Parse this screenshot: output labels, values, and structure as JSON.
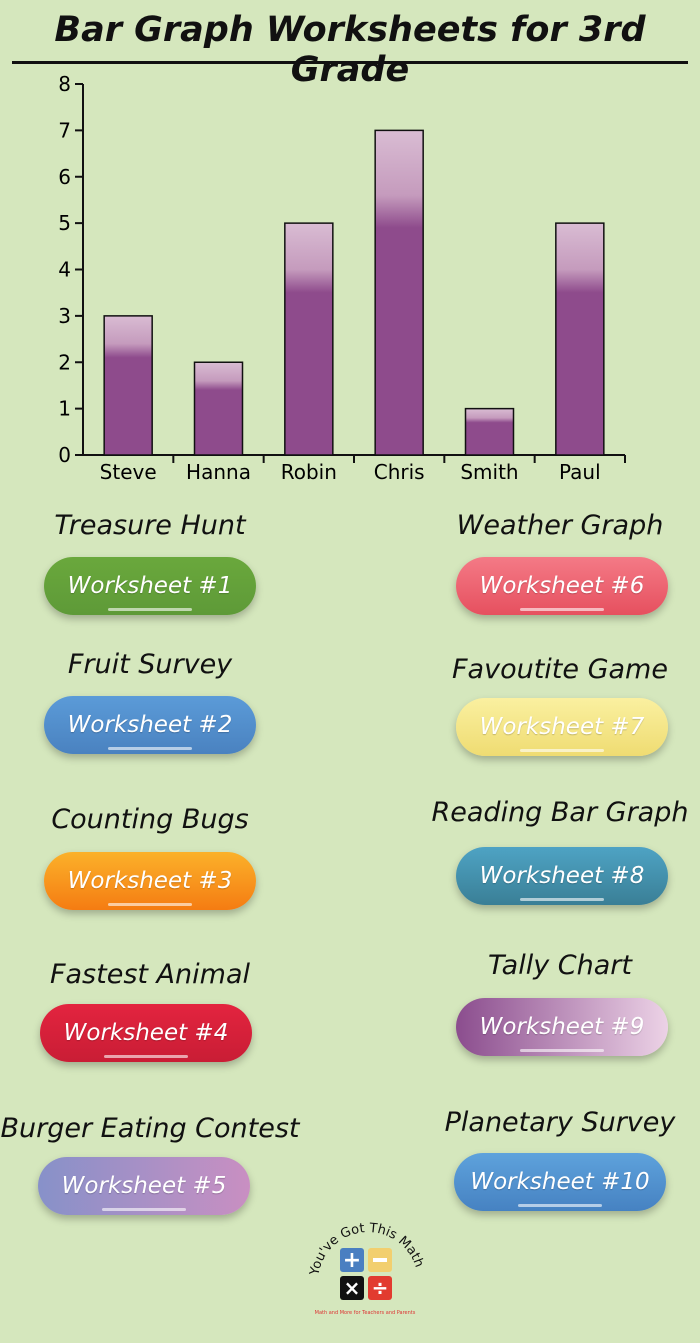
{
  "title": "Bar Graph Worksheets for 3rd Grade",
  "chart_data": {
    "type": "bar",
    "categories": [
      "Steve",
      "Hanna",
      "Robin",
      "Chris",
      "Smith",
      "Paul"
    ],
    "values": [
      3,
      2,
      5,
      7,
      1,
      5
    ],
    "ylim": [
      0,
      8
    ],
    "yticks": [
      "0",
      "1",
      "2",
      "3",
      "4",
      "5",
      "6",
      "7",
      "8"
    ],
    "bar_color": "#8e4b8c",
    "grid": false
  },
  "worksheets": [
    {
      "caption": "Treasure Hunt",
      "label": "Worksheet #1",
      "color": "#6aa83c",
      "color2": "#5e9a38"
    },
    {
      "caption": "Fruit Survey",
      "label": "Worksheet #2",
      "color": "#5b9bd8",
      "color2": "#4a82c0"
    },
    {
      "caption": "Counting Bugs",
      "label": "Worksheet #3",
      "color": "#fbb12a",
      "color2": "#f57c12"
    },
    {
      "caption": "Fastest Animal",
      "label": "Worksheet #4",
      "color": "#e3243f",
      "color2": "#c91d35"
    },
    {
      "caption": "Burger Eating Contest",
      "label": "Worksheet #5",
      "color": "#8791c9",
      "color2": "#c98fc2"
    },
    {
      "caption": "Weather Graph",
      "label": "Worksheet #6",
      "color": "#f47a86",
      "color2": "#e6505f"
    },
    {
      "caption": "Favoutite Game",
      "label": "Worksheet #7",
      "color": "#faf0a0",
      "color2": "#efdc72"
    },
    {
      "caption": "Reading Bar Graph",
      "label": "Worksheet #8",
      "color": "#4ea3c4",
      "color2": "#3a7f96"
    },
    {
      "caption": "Tally Chart",
      "label": "Worksheet #9",
      "color": "#8b4d8e",
      "color2": "#ecd2e6"
    },
    {
      "caption": "Planetary Survey",
      "label": "Worksheet #10",
      "color": "#5ea2dc",
      "color2": "#4682c2"
    }
  ],
  "logo": {
    "text": "You've Got This Math",
    "tagline": "Math and More for Teachers and Parents",
    "colors": [
      "#4a7fc1",
      "#f2cf6e",
      "#111111",
      "#e23b2f"
    ]
  }
}
